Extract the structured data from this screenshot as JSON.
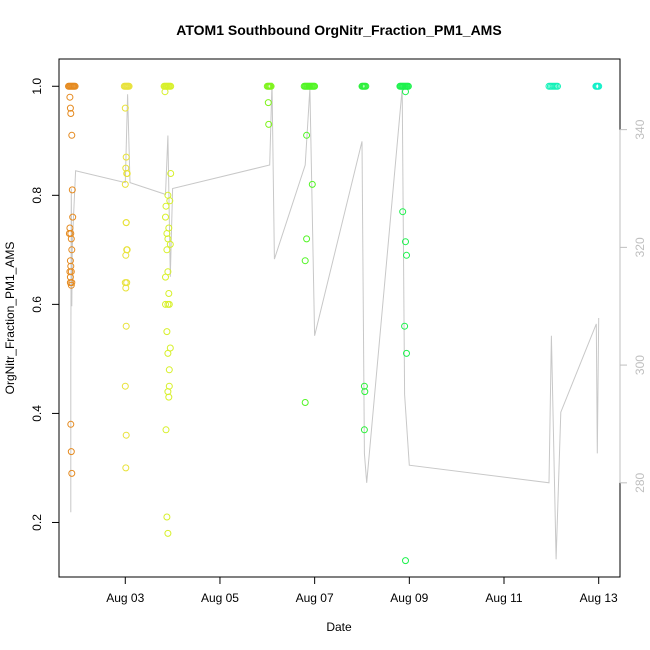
{
  "chart_data": {
    "type": "scatter",
    "title": "ATOM1 Southbound OrgNitr_Fraction_PM1_AMS",
    "xlabel": "Date",
    "ylabel": "OrgNitr_Fraction_PM1_AMS",
    "x_ticks": [
      "Aug 03",
      "Aug 05",
      "Aug 07",
      "Aug 09",
      "Aug 11",
      "Aug 13"
    ],
    "x_tick_days": [
      3,
      5,
      7,
      9,
      11,
      13
    ],
    "xlim_days": [
      1.6,
      13.45
    ],
    "y_ticks": [
      "0.2",
      "0.4",
      "0.6",
      "0.8",
      "1.0"
    ],
    "y_tick_values": [
      0.2,
      0.4,
      0.6,
      0.8,
      1.0
    ],
    "ylim": [
      0.1,
      1.05
    ],
    "right_axis": {
      "ticks": [
        "280",
        "300",
        "320",
        "340"
      ],
      "tick_values": [
        280,
        300,
        320,
        340
      ],
      "ylim": [
        264,
        352
      ],
      "line_color": "#c8c8c8",
      "line_points": [
        [
          1.85,
          275
        ],
        [
          1.85,
          300
        ],
        [
          1.86,
          330
        ],
        [
          1.87,
          310
        ],
        [
          1.88,
          320
        ],
        [
          1.9,
          324
        ],
        [
          1.95,
          333
        ],
        [
          3.0,
          331
        ],
        [
          3.05,
          346
        ],
        [
          3.1,
          331
        ],
        [
          3.85,
          329
        ],
        [
          3.9,
          339
        ],
        [
          3.95,
          315
        ],
        [
          4.0,
          330
        ],
        [
          6.05,
          334
        ],
        [
          6.1,
          348
        ],
        [
          6.15,
          318
        ],
        [
          6.8,
          334
        ],
        [
          6.9,
          347
        ],
        [
          7.0,
          305
        ],
        [
          8.0,
          338
        ],
        [
          8.05,
          285
        ],
        [
          8.1,
          280
        ],
        [
          8.85,
          347
        ],
        [
          8.9,
          295
        ],
        [
          9.0,
          283
        ],
        [
          11.95,
          280
        ],
        [
          12.0,
          305
        ],
        [
          12.1,
          267
        ],
        [
          12.2,
          292
        ],
        [
          12.95,
          307
        ],
        [
          12.97,
          285
        ],
        [
          13.0,
          308
        ]
      ]
    },
    "grid": false,
    "series": [
      {
        "color": "#e58a1f",
        "x": [
          1.8,
          1.82,
          1.84,
          1.86,
          1.88,
          1.9,
          1.92,
          1.94,
          1.83,
          1.84,
          1.85,
          1.87,
          1.88,
          1.89,
          1.82,
          1.83,
          1.85,
          1.86,
          1.84,
          1.85,
          1.86,
          1.87,
          1.84,
          1.86,
          1.85,
          1.86,
          1.87,
          1.83,
          1.84,
          1.87
        ],
        "y": [
          1.0,
          1.0,
          1.0,
          1.0,
          1.0,
          1.0,
          1.0,
          1.0,
          0.98,
          0.96,
          0.95,
          0.91,
          0.81,
          0.76,
          0.73,
          0.74,
          0.73,
          0.72,
          0.68,
          0.67,
          0.66,
          0.64,
          0.64,
          0.635,
          0.38,
          0.33,
          0.29,
          0.66,
          0.65,
          0.7
        ]
      },
      {
        "color": "#e8e23a",
        "x": [
          2.98,
          3.0,
          3.02,
          3.04,
          3.06,
          3.08,
          3.0,
          3.02,
          3.01,
          3.03,
          3.0,
          3.02,
          3.04,
          3.01,
          3.03,
          3.01,
          3.02,
          3.0,
          3.02,
          3.01,
          3.02,
          3.04,
          3.0,
          3.03
        ],
        "y": [
          1.0,
          1.0,
          1.0,
          1.0,
          1.0,
          1.0,
          0.96,
          0.87,
          0.85,
          0.84,
          0.82,
          0.75,
          0.7,
          0.69,
          0.64,
          0.63,
          0.56,
          0.45,
          0.36,
          0.3,
          0.75,
          0.84,
          0.64,
          0.7
        ]
      },
      {
        "color": "#d7f02a",
        "x": [
          3.82,
          3.84,
          3.86,
          3.88,
          3.9,
          3.92,
          3.94,
          3.96,
          3.84,
          3.96,
          3.9,
          3.94,
          3.86,
          3.88,
          3.9,
          3.92,
          3.95,
          3.85,
          3.92,
          3.85,
          3.9,
          3.88,
          3.95,
          3.9,
          3.93,
          3.9,
          3.92,
          3.86,
          3.88,
          3.9,
          3.93,
          3.85,
          3.88,
          3.9,
          3.93
        ],
        "y": [
          1.0,
          1.0,
          1.0,
          1.0,
          1.0,
          1.0,
          1.0,
          1.0,
          0.99,
          0.84,
          0.8,
          0.79,
          0.78,
          0.73,
          0.72,
          0.74,
          0.71,
          0.65,
          0.62,
          0.6,
          0.6,
          0.55,
          0.52,
          0.51,
          0.48,
          0.44,
          0.43,
          0.37,
          0.21,
          0.18,
          0.6,
          0.76,
          0.7,
          0.66,
          0.45
        ]
      },
      {
        "color": "#7ef41a",
        "x": [
          6.0,
          6.02,
          6.04,
          6.06,
          6.08,
          6.02,
          6.03
        ],
        "y": [
          1.0,
          1.0,
          1.0,
          1.0,
          1.0,
          0.97,
          0.93
        ]
      },
      {
        "color": "#52f525",
        "x": [
          6.78,
          6.8,
          6.82,
          6.84,
          6.86,
          6.88,
          6.9,
          6.92,
          6.94,
          6.96,
          6.98,
          7.0,
          6.83,
          6.95,
          6.83,
          6.8,
          6.8
        ],
        "y": [
          1.0,
          1.0,
          1.0,
          1.0,
          1.0,
          1.0,
          1.0,
          1.0,
          1.0,
          1.0,
          1.0,
          1.0,
          0.91,
          0.82,
          0.72,
          0.68,
          0.42
        ]
      },
      {
        "color": "#2cf03a",
        "x": [
          8.0,
          8.02,
          8.04,
          8.06,
          8.08,
          8.05,
          8.06,
          8.05
        ],
        "y": [
          1.0,
          1.0,
          1.0,
          1.0,
          1.0,
          0.45,
          0.44,
          0.37
        ]
      },
      {
        "color": "#1df24d",
        "x": [
          8.8,
          8.82,
          8.84,
          8.86,
          8.88,
          8.9,
          8.92,
          8.94,
          8.96,
          8.98,
          8.92,
          8.86,
          8.92,
          8.94,
          8.9,
          8.94,
          8.92
        ],
        "y": [
          1.0,
          1.0,
          1.0,
          1.0,
          1.0,
          1.0,
          1.0,
          1.0,
          1.0,
          1.0,
          0.99,
          0.77,
          0.715,
          0.69,
          0.56,
          0.51,
          0.13
        ]
      },
      {
        "color": "#12f2b8",
        "x": [
          11.95,
          11.98,
          12.01,
          12.04,
          12.07,
          12.1,
          12.13
        ],
        "y": [
          1.0,
          1.0,
          1.0,
          1.0,
          1.0,
          1.0,
          1.0
        ]
      },
      {
        "color": "#0ef0c8",
        "x": [
          12.94,
          12.96,
          12.98,
          13.0
        ],
        "y": [
          1.0,
          1.0,
          1.0,
          1.0
        ]
      }
    ]
  }
}
